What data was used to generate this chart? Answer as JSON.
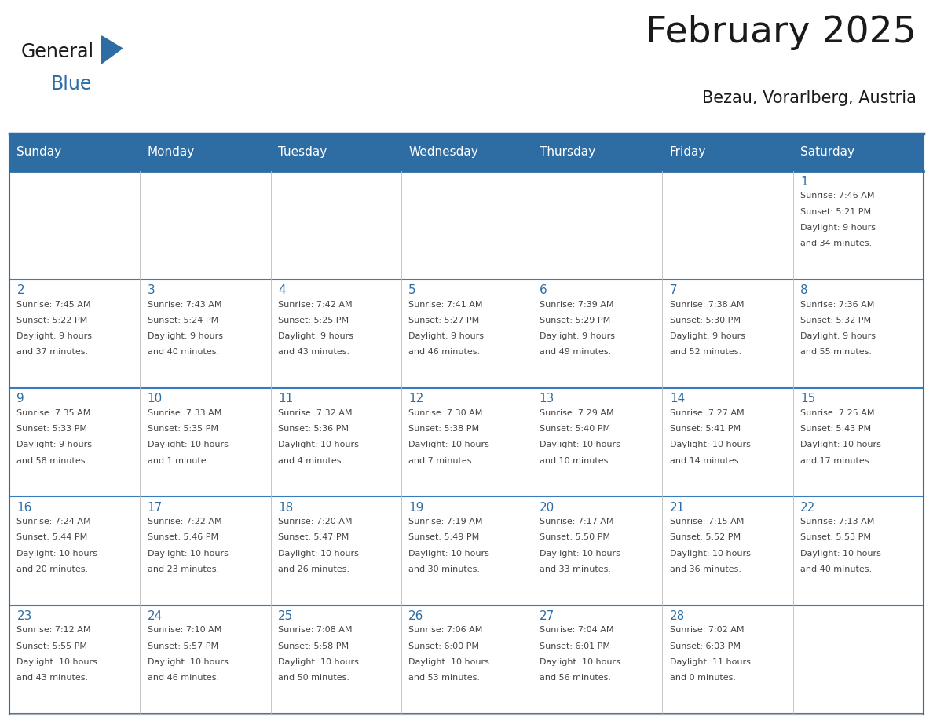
{
  "title": "February 2025",
  "subtitle": "Bezau, Vorarlberg, Austria",
  "days_of_week": [
    "Sunday",
    "Monday",
    "Tuesday",
    "Wednesday",
    "Thursday",
    "Friday",
    "Saturday"
  ],
  "header_bg": "#2e6da4",
  "header_text": "#ffffff",
  "border_color": "#2e6da4",
  "row_border_color": "#3a7bbf",
  "cell_border_color": "#aaaaaa",
  "text_color": "#444444",
  "day_number_color": "#2e6da4",
  "bg_color": "#ffffff",
  "calendar_data": {
    "1": {
      "dow": 6,
      "sunrise": "7:46 AM",
      "sunset": "5:21 PM",
      "daylight": "9 hours and 34 minutes"
    },
    "2": {
      "dow": 0,
      "sunrise": "7:45 AM",
      "sunset": "5:22 PM",
      "daylight": "9 hours and 37 minutes"
    },
    "3": {
      "dow": 1,
      "sunrise": "7:43 AM",
      "sunset": "5:24 PM",
      "daylight": "9 hours and 40 minutes"
    },
    "4": {
      "dow": 2,
      "sunrise": "7:42 AM",
      "sunset": "5:25 PM",
      "daylight": "9 hours and 43 minutes"
    },
    "5": {
      "dow": 3,
      "sunrise": "7:41 AM",
      "sunset": "5:27 PM",
      "daylight": "9 hours and 46 minutes"
    },
    "6": {
      "dow": 4,
      "sunrise": "7:39 AM",
      "sunset": "5:29 PM",
      "daylight": "9 hours and 49 minutes"
    },
    "7": {
      "dow": 5,
      "sunrise": "7:38 AM",
      "sunset": "5:30 PM",
      "daylight": "9 hours and 52 minutes"
    },
    "8": {
      "dow": 6,
      "sunrise": "7:36 AM",
      "sunset": "5:32 PM",
      "daylight": "9 hours and 55 minutes"
    },
    "9": {
      "dow": 0,
      "sunrise": "7:35 AM",
      "sunset": "5:33 PM",
      "daylight": "9 hours and 58 minutes"
    },
    "10": {
      "dow": 1,
      "sunrise": "7:33 AM",
      "sunset": "5:35 PM",
      "daylight": "10 hours and 1 minute"
    },
    "11": {
      "dow": 2,
      "sunrise": "7:32 AM",
      "sunset": "5:36 PM",
      "daylight": "10 hours and 4 minutes"
    },
    "12": {
      "dow": 3,
      "sunrise": "7:30 AM",
      "sunset": "5:38 PM",
      "daylight": "10 hours and 7 minutes"
    },
    "13": {
      "dow": 4,
      "sunrise": "7:29 AM",
      "sunset": "5:40 PM",
      "daylight": "10 hours and 10 minutes"
    },
    "14": {
      "dow": 5,
      "sunrise": "7:27 AM",
      "sunset": "5:41 PM",
      "daylight": "10 hours and 14 minutes"
    },
    "15": {
      "dow": 6,
      "sunrise": "7:25 AM",
      "sunset": "5:43 PM",
      "daylight": "10 hours and 17 minutes"
    },
    "16": {
      "dow": 0,
      "sunrise": "7:24 AM",
      "sunset": "5:44 PM",
      "daylight": "10 hours and 20 minutes"
    },
    "17": {
      "dow": 1,
      "sunrise": "7:22 AM",
      "sunset": "5:46 PM",
      "daylight": "10 hours and 23 minutes"
    },
    "18": {
      "dow": 2,
      "sunrise": "7:20 AM",
      "sunset": "5:47 PM",
      "daylight": "10 hours and 26 minutes"
    },
    "19": {
      "dow": 3,
      "sunrise": "7:19 AM",
      "sunset": "5:49 PM",
      "daylight": "10 hours and 30 minutes"
    },
    "20": {
      "dow": 4,
      "sunrise": "7:17 AM",
      "sunset": "5:50 PM",
      "daylight": "10 hours and 33 minutes"
    },
    "21": {
      "dow": 5,
      "sunrise": "7:15 AM",
      "sunset": "5:52 PM",
      "daylight": "10 hours and 36 minutes"
    },
    "22": {
      "dow": 6,
      "sunrise": "7:13 AM",
      "sunset": "5:53 PM",
      "daylight": "10 hours and 40 minutes"
    },
    "23": {
      "dow": 0,
      "sunrise": "7:12 AM",
      "sunset": "5:55 PM",
      "daylight": "10 hours and 43 minutes"
    },
    "24": {
      "dow": 1,
      "sunrise": "7:10 AM",
      "sunset": "5:57 PM",
      "daylight": "10 hours and 46 minutes"
    },
    "25": {
      "dow": 2,
      "sunrise": "7:08 AM",
      "sunset": "5:58 PM",
      "daylight": "10 hours and 50 minutes"
    },
    "26": {
      "dow": 3,
      "sunrise": "7:06 AM",
      "sunset": "6:00 PM",
      "daylight": "10 hours and 53 minutes"
    },
    "27": {
      "dow": 4,
      "sunrise": "7:04 AM",
      "sunset": "6:01 PM",
      "daylight": "10 hours and 56 minutes"
    },
    "28": {
      "dow": 5,
      "sunrise": "7:02 AM",
      "sunset": "6:03 PM",
      "daylight": "11 hours and 0 minutes"
    }
  },
  "logo_text_general": "General",
  "logo_text_blue": "Blue",
  "logo_color_general": "#1a1a1a",
  "logo_color_blue": "#2e6da4",
  "logo_triangle_color": "#2e6da4",
  "title_fontsize": 34,
  "subtitle_fontsize": 15,
  "header_fontsize": 11,
  "day_num_fontsize": 11,
  "cell_text_fontsize": 8
}
